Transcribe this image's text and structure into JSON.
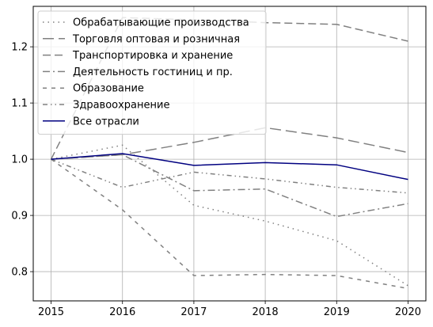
{
  "chart_data": {
    "type": "line",
    "title": "",
    "xlabel": "",
    "ylabel": "",
    "x": [
      2015,
      2016,
      2017,
      2018,
      2019,
      2020
    ],
    "xticks": [
      "2015",
      "2016",
      "2017",
      "2018",
      "2019",
      "2020"
    ],
    "yticks": [
      "0.8",
      "0.9",
      "1.0",
      "1.1",
      "1.2"
    ],
    "ytick_values": [
      0.8,
      0.9,
      1.0,
      1.1,
      1.2
    ],
    "xlim": [
      2014.75,
      2020.25
    ],
    "ylim": [
      0.748,
      1.272
    ],
    "grid": true,
    "legend_position": "top-left",
    "series": [
      {
        "name": "Обрабатывающие производства",
        "values": [
          1.0,
          1.025,
          0.918,
          0.89,
          0.855,
          0.775
        ],
        "color": "#808080",
        "style": "dotted"
      },
      {
        "name": "Торговля оптовая и розничная",
        "values": [
          1.0,
          1.008,
          1.03,
          1.056,
          1.038,
          1.012
        ],
        "color": "#808080",
        "style": "long-dash"
      },
      {
        "name": "Транспортировка и хранение",
        "values": [
          1.0,
          1.252,
          1.248,
          1.243,
          1.24,
          1.21
        ],
        "color": "#808080",
        "style": "dashed"
      },
      {
        "name": "Деятельность гостиниц и пр.",
        "values": [
          1.0,
          1.008,
          0.944,
          0.947,
          0.898,
          0.921
        ],
        "color": "#808080",
        "style": "dash-dot"
      },
      {
        "name": "Образование",
        "values": [
          1.0,
          0.91,
          0.793,
          0.795,
          0.793,
          0.77
        ],
        "color": "#808080",
        "style": "short-dash"
      },
      {
        "name": "Здравоохранение",
        "values": [
          1.0,
          0.95,
          0.977,
          0.965,
          0.95,
          0.94
        ],
        "color": "#808080",
        "style": "dash-dot-dot"
      },
      {
        "name": "Все отрасли",
        "values": [
          1.0,
          1.01,
          0.989,
          0.994,
          0.99,
          0.964
        ],
        "color": "#000080",
        "style": "solid"
      }
    ]
  }
}
